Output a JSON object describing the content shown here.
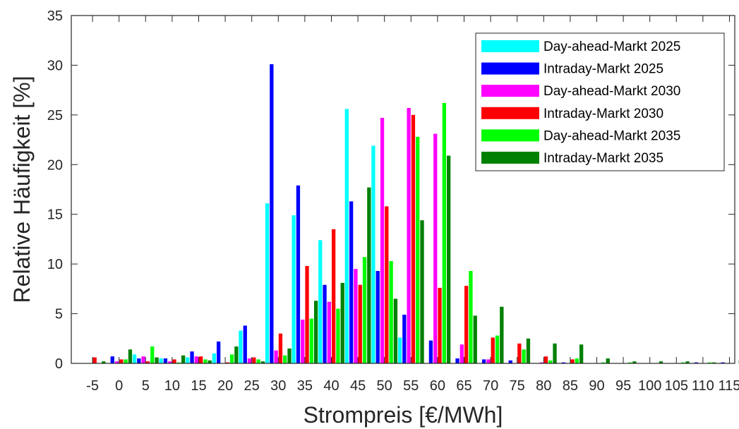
{
  "chart_data": {
    "type": "bar",
    "xlabel": "Strompreis [€/MWh]",
    "ylabel": "Relative Häufigkeit [%]",
    "ylim": [
      0,
      35
    ],
    "yticks": [
      0,
      5,
      10,
      15,
      20,
      25,
      30,
      35
    ],
    "grid": false,
    "legend_position": "top-right",
    "categories": [
      "-5",
      "0",
      "5",
      "10",
      "15",
      "20",
      "25",
      "30",
      "35",
      "40",
      "45",
      "50",
      "55",
      "60",
      "65",
      "70",
      "75",
      "80",
      "85",
      "90",
      "95",
      "100",
      "105",
      "110",
      "115"
    ],
    "series": [
      {
        "name": "Day-ahead-Markt 2025",
        "color": "#00ffff",
        "values": [
          0,
          0,
          0.9,
          0.5,
          0.6,
          1.0,
          3.3,
          16.1,
          14.9,
          12.4,
          25.6,
          21.9,
          2.6,
          0,
          0,
          0,
          0,
          0,
          0,
          0,
          0,
          0,
          0,
          0,
          0
        ]
      },
      {
        "name": "Intraday-Markt 2025",
        "color": "#0000ff",
        "values": [
          0,
          0.7,
          0.5,
          0.5,
          1.2,
          2.2,
          3.8,
          30.1,
          17.9,
          7.9,
          16.3,
          9.3,
          4.9,
          2.3,
          0.5,
          0.4,
          0.3,
          0,
          0.1,
          0,
          0,
          0,
          0,
          0.1,
          0.1
        ]
      },
      {
        "name": "Day-ahead-Markt 2030",
        "color": "#ff00ff",
        "values": [
          0,
          0.2,
          0.7,
          0.2,
          0.7,
          0,
          0.5,
          1.3,
          4.4,
          6.2,
          9.5,
          24.7,
          25.7,
          23.1,
          1.9,
          0.4,
          0,
          0.1,
          0,
          0,
          0,
          0,
          0,
          0,
          0
        ]
      },
      {
        "name": "Intraday-Markt 2030",
        "color": "#ff0000",
        "values": [
          0.6,
          0.4,
          0.2,
          0.4,
          0.7,
          0.1,
          0.6,
          3.0,
          9.8,
          13.5,
          7.9,
          15.8,
          25.0,
          7.6,
          7.8,
          2.6,
          2.0,
          0.7,
          0.4,
          0,
          0,
          0,
          0,
          0,
          0
        ]
      },
      {
        "name": "Day-ahead-Markt 2035",
        "color": "#00ff00",
        "values": [
          0,
          0.4,
          1.7,
          0.1,
          0.4,
          0.9,
          0.4,
          0.8,
          4.5,
          5.5,
          10.7,
          10.3,
          22.8,
          26.2,
          9.3,
          2.8,
          1.4,
          0.3,
          0.5,
          0.1,
          0.1,
          0,
          0.1,
          0.1,
          0
        ]
      },
      {
        "name": "Intraday-Markt 2035",
        "color": "#008000",
        "values": [
          0.2,
          1.4,
          0.6,
          0.8,
          0.3,
          1.7,
          0.2,
          1.5,
          6.3,
          8.1,
          17.7,
          6.5,
          14.4,
          20.9,
          4.8,
          5.7,
          2.5,
          2.0,
          1.9,
          0.5,
          0.2,
          0.2,
          0.2,
          0.1,
          0.3
        ]
      }
    ]
  }
}
